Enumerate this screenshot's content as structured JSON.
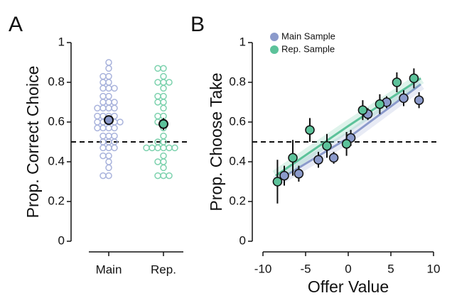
{
  "chart_data": [
    {
      "type": "strip",
      "panel_label": "A",
      "ylabel": "Prop. Correct Choice",
      "categories": [
        "Main",
        "Rep."
      ],
      "colors": [
        "#a9b3dc",
        "#7dd2ae"
      ],
      "mean_colors": [
        "#8b9acb",
        "#5cc29a"
      ],
      "points": [
        [
          0.9,
          0.87,
          0.83,
          0.83,
          0.8,
          0.8,
          0.77,
          0.77,
          0.77,
          0.73,
          0.73,
          0.7,
          0.7,
          0.7,
          0.67,
          0.67,
          0.67,
          0.67,
          0.63,
          0.63,
          0.63,
          0.63,
          0.6,
          0.6,
          0.6,
          0.6,
          0.6,
          0.57,
          0.57,
          0.57,
          0.57,
          0.53,
          0.53,
          0.53,
          0.5,
          0.5,
          0.5,
          0.47,
          0.47,
          0.47,
          0.43,
          0.43,
          0.4,
          0.37,
          0.33,
          0.33
        ],
        [
          0.87,
          0.87,
          0.83,
          0.8,
          0.8,
          0.8,
          0.77,
          0.73,
          0.73,
          0.7,
          0.7,
          0.67,
          0.63,
          0.63,
          0.6,
          0.6,
          0.57,
          0.53,
          0.5,
          0.5,
          0.47,
          0.47,
          0.47,
          0.47,
          0.47,
          0.47,
          0.43,
          0.4,
          0.4,
          0.37,
          0.33,
          0.33,
          0.33
        ]
      ],
      "means": [
        0.61,
        0.59
      ],
      "errors": [
        0.02,
        0.03
      ],
      "hline": 0.5,
      "ylim": [
        0,
        1
      ],
      "yticks": [
        0,
        0.2,
        0.4,
        0.6,
        0.8,
        1
      ]
    },
    {
      "type": "scatter",
      "panel_label": "B",
      "xlabel": "Offer Value",
      "ylabel": "Prop. Choose Take",
      "legend": "upper left",
      "hline": 0.5,
      "xlim": [
        -10,
        10
      ],
      "xticks": [
        -10,
        -5,
        0,
        5,
        10
      ],
      "ylim": [
        0,
        1
      ],
      "yticks": [
        0,
        0.2,
        0.4,
        0.6,
        0.8,
        1
      ],
      "series": [
        {
          "name": "Main Sample",
          "color": "#8b9acb",
          "x": [
            -7.5,
            -5.8,
            -3.5,
            -1.7,
            0.3,
            2.3,
            4.5,
            6.5,
            8.3
          ],
          "values": [
            0.33,
            0.34,
            0.41,
            0.42,
            0.52,
            0.64,
            0.7,
            0.72,
            0.71
          ],
          "errors": [
            0.05,
            0.04,
            0.04,
            0.03,
            0.04,
            0.03,
            0.03,
            0.04,
            0.04
          ],
          "fit_x": [
            -8.5,
            0,
            8.5
          ],
          "fit_values": [
            0.3,
            0.52,
            0.79
          ]
        },
        {
          "name": "Rep. Sample",
          "color": "#5cc29a",
          "x": [
            -8.3,
            -6.5,
            -4.5,
            -2.5,
            -0.2,
            1.7,
            3.7,
            5.7,
            7.7
          ],
          "values": [
            0.3,
            0.42,
            0.56,
            0.48,
            0.49,
            0.66,
            0.69,
            0.8,
            0.82
          ],
          "errors": [
            0.11,
            0.09,
            0.06,
            0.06,
            0.06,
            0.05,
            0.05,
            0.05,
            0.05
          ],
          "fit_x": [
            -8.5,
            0,
            8.5
          ],
          "fit_values": [
            0.33,
            0.58,
            0.82
          ]
        }
      ]
    }
  ]
}
